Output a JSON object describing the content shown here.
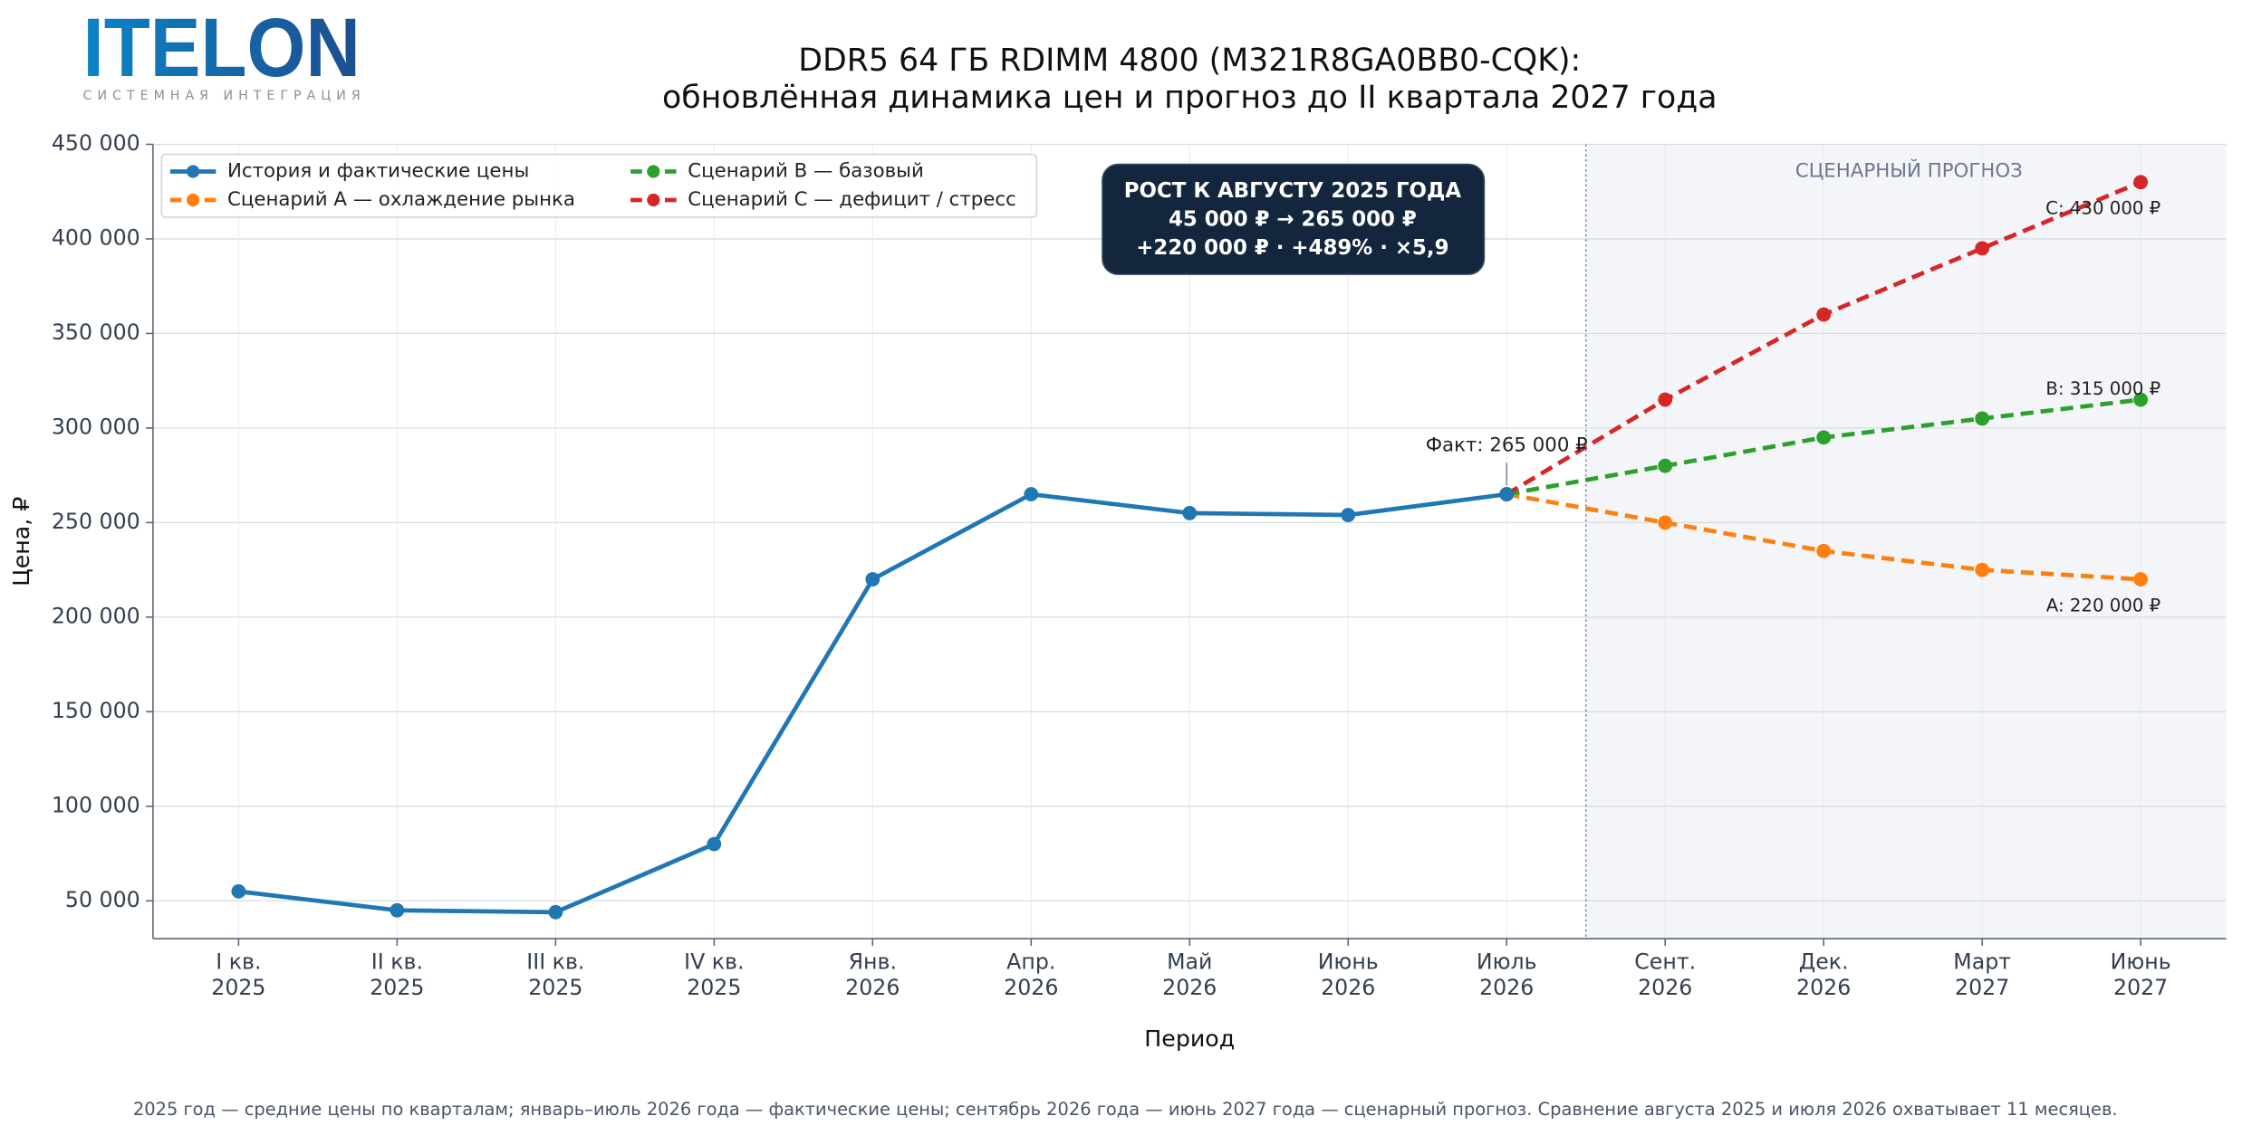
{
  "logo": {
    "name": "ITELON",
    "tagline": "СИСТЕМНАЯ ИНТЕГРАЦИЯ"
  },
  "chart_data": {
    "type": "line",
    "title": [
      "DDR5 64 ГБ RDIMM 4800 (M321R8GA0BB0-CQK):",
      "обновлённая динамика цен и прогноз до II квартала 2027 года"
    ],
    "x_label": "Период",
    "y_label": "Цена, ₽",
    "categories": [
      [
        "I кв.",
        "2025"
      ],
      [
        "II кв.",
        "2025"
      ],
      [
        "III кв.",
        "2025"
      ],
      [
        "IV кв.",
        "2025"
      ],
      [
        "Янв.",
        "2026"
      ],
      [
        "Апр.",
        "2026"
      ],
      [
        "Май",
        "2026"
      ],
      [
        "Июнь",
        "2026"
      ],
      [
        "Июль",
        "2026"
      ],
      [
        "Сент.",
        "2026"
      ],
      [
        "Дек.",
        "2026"
      ],
      [
        "Март",
        "2027"
      ],
      [
        "Июнь",
        "2027"
      ]
    ],
    "series": [
      {
        "name": "История и фактические цены",
        "color": "#1f77b4",
        "dashed": false,
        "values": [
          55000,
          45000,
          44000,
          80000,
          220000,
          265000,
          255000,
          254000,
          265000,
          null,
          null,
          null,
          null
        ],
        "value_labels": [
          null,
          null,
          null,
          null,
          null,
          null,
          null,
          null,
          "Факт: 265 000 ₽",
          null,
          null,
          null,
          null
        ]
      },
      {
        "name": "Сценарий A — охлаждение рынка",
        "color": "#ff7f0e",
        "dashed": true,
        "values": [
          null,
          null,
          null,
          null,
          null,
          null,
          null,
          null,
          265000,
          250000,
          235000,
          225000,
          220000
        ],
        "value_labels": [
          null,
          null,
          null,
          null,
          null,
          null,
          null,
          null,
          null,
          null,
          null,
          null,
          "A: 220 000 ₽"
        ]
      },
      {
        "name": "Сценарий B — базовый",
        "color": "#2ca02c",
        "dashed": true,
        "values": [
          null,
          null,
          null,
          null,
          null,
          null,
          null,
          null,
          265000,
          280000,
          295000,
          305000,
          315000
        ],
        "value_labels": [
          null,
          null,
          null,
          null,
          null,
          null,
          null,
          null,
          null,
          null,
          null,
          null,
          "B: 315 000 ₽"
        ]
      },
      {
        "name": "Сценарий C — дефицит / стресс",
        "color": "#d62728",
        "dashed": true,
        "values": [
          null,
          null,
          null,
          null,
          null,
          null,
          null,
          null,
          265000,
          315000,
          360000,
          395000,
          430000
        ],
        "value_labels": [
          null,
          null,
          null,
          null,
          null,
          null,
          null,
          null,
          null,
          null,
          null,
          null,
          "C: 430 000 ₽"
        ]
      }
    ],
    "ylim": [
      30000,
      450000
    ],
    "yticks": [
      {
        "value": 50000,
        "label": "50 000"
      },
      {
        "value": 100000,
        "label": "100 000"
      },
      {
        "value": 150000,
        "label": "150 000"
      },
      {
        "value": 200000,
        "label": "200 000"
      },
      {
        "value": 250000,
        "label": "250 000"
      },
      {
        "value": 300000,
        "label": "300 000"
      },
      {
        "value": 350000,
        "label": "350 000"
      },
      {
        "value": 400000,
        "label": "400 000"
      },
      {
        "value": 450000,
        "label": "450 000"
      }
    ],
    "grid": true,
    "legend": "upper left",
    "forecast_label": "СЦЕНАРНЫЙ ПРОГНОЗ",
    "callout": [
      "РОСТ К АВГУСТУ 2025 ГОДА",
      "45 000 ₽  →  265 000 ₽",
      "+220 000 ₽  ·  +489%  ·  ×5,9"
    ],
    "footnote": "2025 год — средние цены по кварталам; январь–июль 2026 года — фактические цены; сентябрь 2026 года — июнь 2027 года — сценарный прогноз. Сравнение августа 2025 и июля 2026 охватывает 11 месяцев."
  }
}
